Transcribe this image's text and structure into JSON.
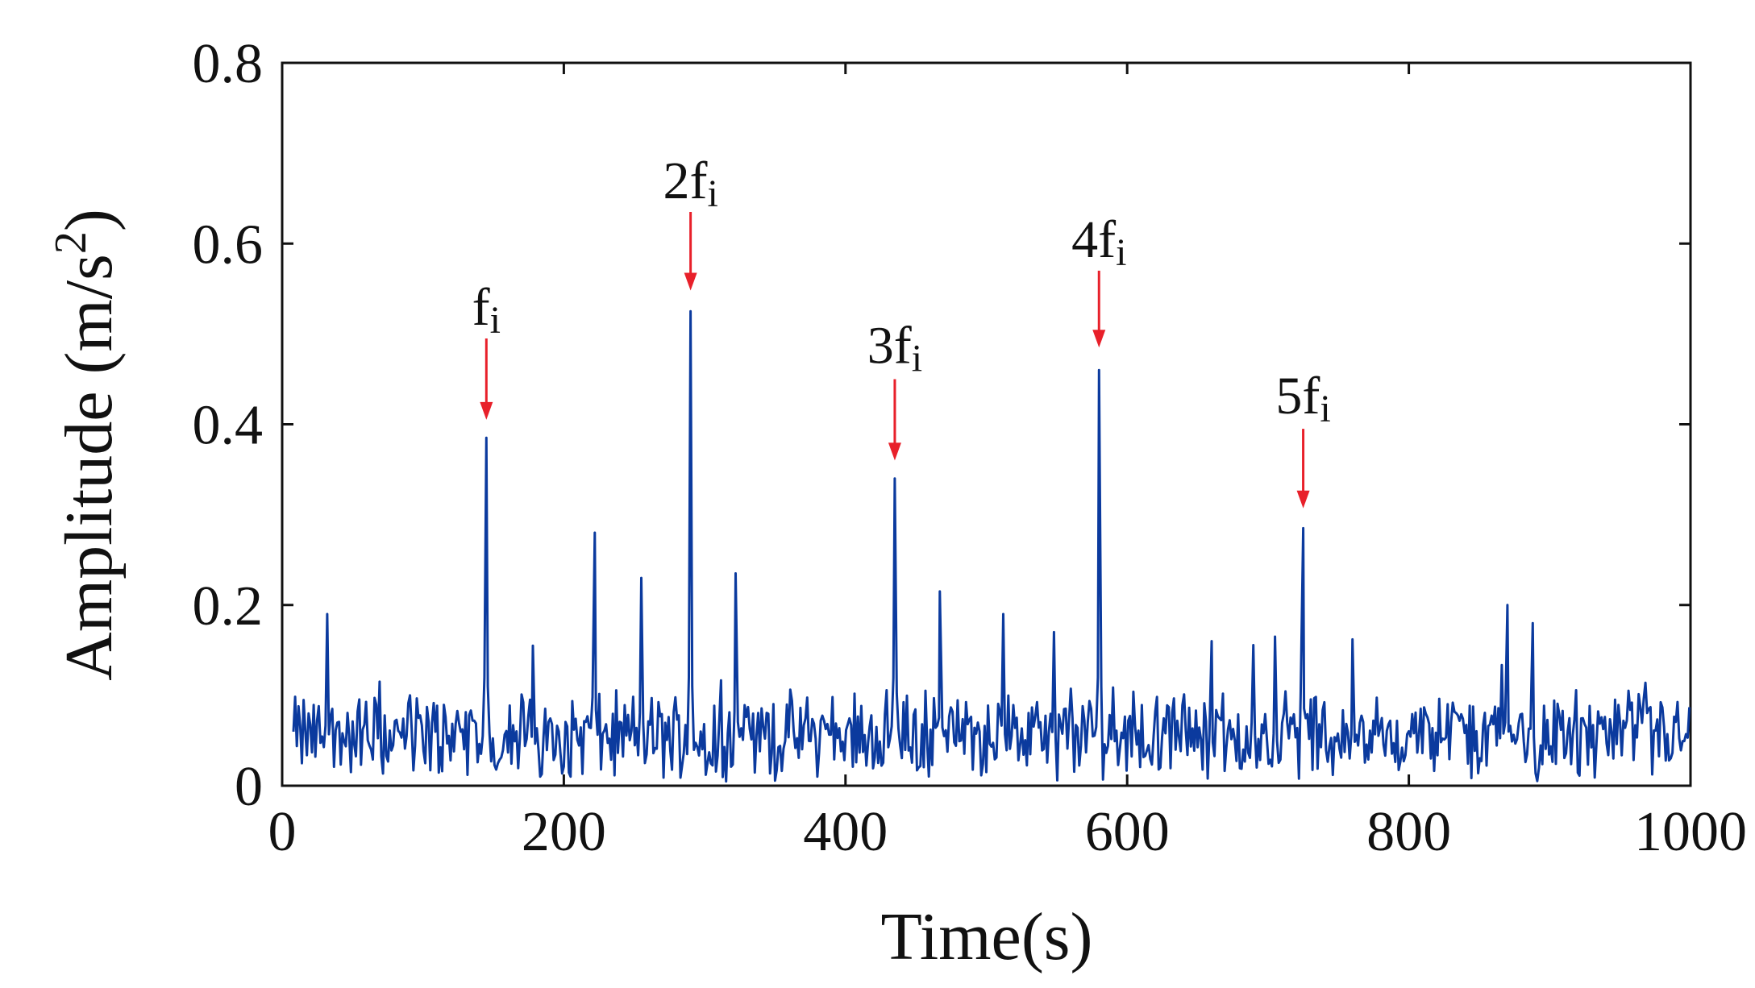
{
  "chart_data": {
    "type": "line",
    "title": "",
    "xlabel": "Time(s)",
    "ylabel_main": "Amplitude (m/s",
    "ylabel_sup": "2",
    "ylabel_close": ")",
    "xlim": [
      0,
      1000
    ],
    "ylim": [
      0,
      0.8
    ],
    "xticks": [
      0,
      200,
      400,
      600,
      800,
      1000
    ],
    "xtick_labels": [
      "0",
      "200",
      "400",
      "600",
      "800",
      "1000"
    ],
    "yticks": [
      0,
      0.2,
      0.4,
      0.6,
      0.8
    ],
    "ytick_labels": [
      "0",
      "0.2",
      "0.4",
      "0.6",
      "0.8"
    ],
    "grid": false,
    "colors": {
      "series": "#0b3a9e",
      "arrow": "#e8202a",
      "axis": "#111111"
    },
    "series": [
      {
        "name": "signal",
        "noise_x_range": [
          8,
          1000
        ],
        "noise_baseline_mean": 0.055,
        "peaks": [
          {
            "x": 145,
            "y": 0.385
          },
          {
            "x": 290,
            "y": 0.525
          },
          {
            "x": 435,
            "y": 0.34
          },
          {
            "x": 580,
            "y": 0.46
          },
          {
            "x": 725,
            "y": 0.285
          },
          {
            "x": 222,
            "y": 0.28
          },
          {
            "x": 255,
            "y": 0.23
          },
          {
            "x": 322,
            "y": 0.235
          },
          {
            "x": 467,
            "y": 0.215
          },
          {
            "x": 512,
            "y": 0.19
          },
          {
            "x": 548,
            "y": 0.17
          },
          {
            "x": 870,
            "y": 0.2
          },
          {
            "x": 888,
            "y": 0.18
          },
          {
            "x": 32,
            "y": 0.19
          },
          {
            "x": 178,
            "y": 0.155
          },
          {
            "x": 660,
            "y": 0.16
          },
          {
            "x": 705,
            "y": 0.165
          },
          {
            "x": 760,
            "y": 0.162
          }
        ]
      }
    ],
    "annotations": [
      {
        "x": 145,
        "y": 0.385,
        "base": "f",
        "sub": "i",
        "arrow_top": 0.495,
        "arrow_bottom": 0.405,
        "label_y": 0.51
      },
      {
        "x": 290,
        "y": 0.525,
        "base": "2f",
        "sub": "i",
        "arrow_top": 0.635,
        "arrow_bottom": 0.548,
        "label_y": 0.65
      },
      {
        "x": 435,
        "y": 0.34,
        "base": "3f",
        "sub": "i",
        "arrow_top": 0.45,
        "arrow_bottom": 0.36,
        "label_y": 0.468
      },
      {
        "x": 580,
        "y": 0.46,
        "base": "4f",
        "sub": "i",
        "arrow_top": 0.57,
        "arrow_bottom": 0.485,
        "label_y": 0.585
      },
      {
        "x": 725,
        "y": 0.285,
        "base": "5f",
        "sub": "i",
        "arrow_top": 0.395,
        "arrow_bottom": 0.307,
        "label_y": 0.412
      }
    ]
  }
}
